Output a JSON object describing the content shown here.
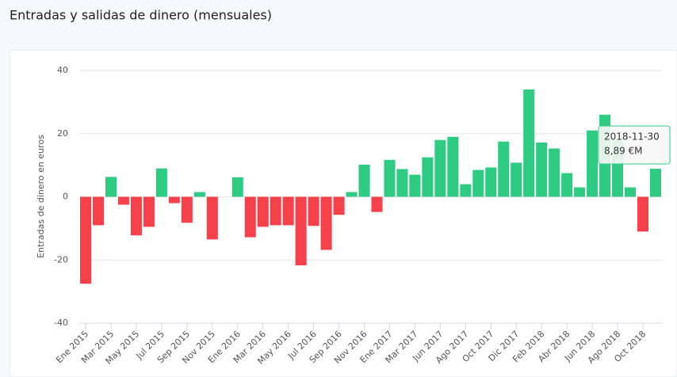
{
  "chart_data": {
    "type": "bar",
    "title": "Entradas y salidas de dinero (mensuales)",
    "y_label": "Entradas de dinero en euros",
    "categories": [
      "Ene 2015",
      null,
      "Mar 2015",
      null,
      "May 2015",
      null,
      "Jul 2015",
      null,
      "Sep 2015",
      null,
      "Nov 2015",
      null,
      "Ene 2016",
      null,
      "Mar 2016",
      null,
      "May 2016",
      null,
      "Jul 2016",
      null,
      "Sep 2016",
      null,
      "Nov 2016",
      null,
      "Ene 2017",
      null,
      "Mar 2017",
      null,
      "Jun 2017",
      null,
      "Ago 2017",
      null,
      "Oct 2017",
      null,
      "Dic 2017",
      null,
      "Feb 2018",
      null,
      "Abr 2018",
      null,
      "Jun 2018",
      null,
      "Ago 2018",
      null,
      "Oct 2018",
      null
    ],
    "values": [
      -27.5,
      -9,
      6.3,
      -2.5,
      -12.2,
      -9.5,
      9,
      -2,
      -8.2,
      1.5,
      -13.5,
      0,
      6.2,
      -12.8,
      -9.5,
      -9,
      -9,
      -21.7,
      -9.2,
      -16.8,
      -5.7,
      1.5,
      10.2,
      -4.8,
      11.7,
      8.8,
      7,
      12.5,
      18,
      19,
      4,
      8.5,
      9.3,
      17.5,
      10.8,
      34,
      17.2,
      15.3,
      7.5,
      3,
      21,
      26,
      18,
      3,
      -11,
      8.89
    ],
    "positive_color": "#2fcb84",
    "negative_color": "#f4414c",
    "ylim": [
      -40,
      40
    ],
    "yticks": [
      -40,
      -20,
      0,
      20,
      40
    ],
    "grid": true,
    "tooltip": {
      "index": 45,
      "date": "2018-11-30",
      "value": "8,89 €M"
    }
  }
}
